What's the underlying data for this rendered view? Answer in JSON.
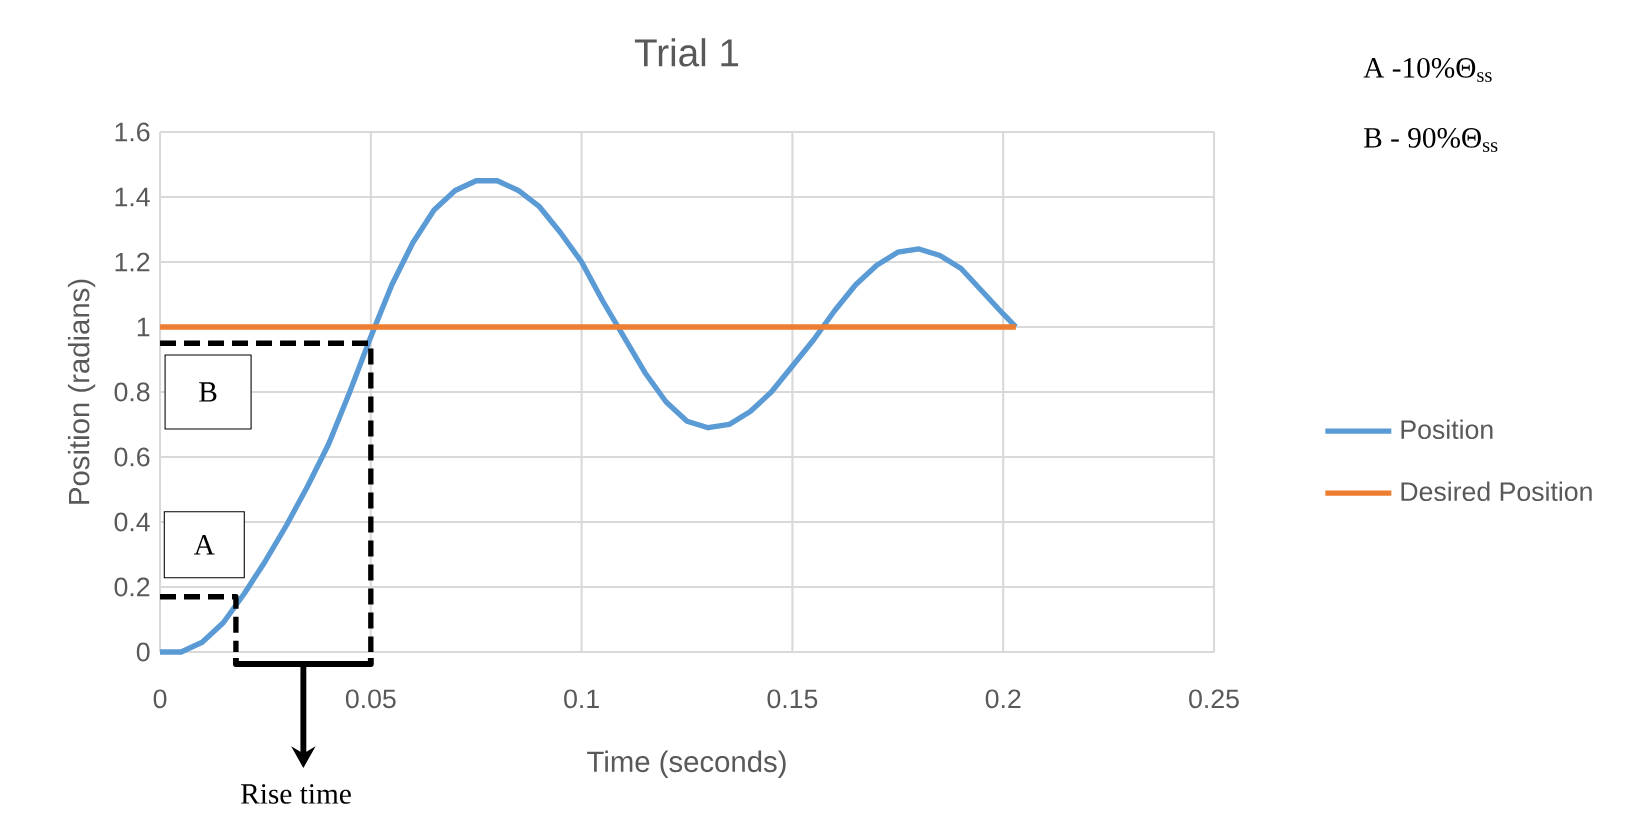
{
  "chart_data": {
    "type": "line",
    "title": "Trial 1",
    "xlabel": "Time (seconds)",
    "ylabel": "Position (radians)",
    "xlim": [
      0,
      0.25
    ],
    "xticks": [
      0,
      0.05,
      0.1,
      0.15,
      0.2,
      0.25
    ],
    "ylim": [
      0,
      1.6
    ],
    "yticks": [
      0,
      0.2,
      0.4,
      0.6,
      0.8,
      1,
      1.2,
      1.4,
      1.6
    ],
    "grid": true,
    "legend": "right",
    "marker": "none",
    "line_style": "solid",
    "annotations": [
      "A",
      "B",
      "A -10%Θ$_{ss}$",
      "B - 90%Θ$_{ss}$",
      "Rise time"
    ],
    "series": [
      {
        "name": "Position",
        "color": "#5b9bd5",
        "x": [
          0,
          0.005,
          0.01,
          0.015,
          0.02,
          0.025,
          0.03,
          0.035,
          0.04,
          0.045,
          0.05,
          0.055,
          0.06,
          0.065,
          0.07,
          0.075,
          0.08,
          0.085,
          0.09,
          0.095,
          0.1,
          0.105,
          0.11,
          0.115,
          0.12,
          0.125,
          0.13,
          0.135,
          0.14,
          0.145,
          0.15,
          0.155,
          0.16,
          0.165,
          0.17,
          0.175,
          0.18,
          0.185,
          0.19,
          0.195,
          0.2,
          0.203
        ],
        "values": [
          0,
          0,
          0.03,
          0.09,
          0.18,
          0.28,
          0.39,
          0.51,
          0.64,
          0.8,
          0.97,
          1.13,
          1.26,
          1.36,
          1.42,
          1.45,
          1.45,
          1.42,
          1.37,
          1.29,
          1.2,
          1.08,
          0.97,
          0.86,
          0.77,
          0.71,
          0.69,
          0.7,
          0.74,
          0.8,
          0.88,
          0.96,
          1.05,
          1.13,
          1.19,
          1.23,
          1.24,
          1.22,
          1.18,
          1.11,
          1.04,
          1.0
        ]
      },
      {
        "name": "Desired Position",
        "color": "#ed7d31",
        "x": [
          0,
          0.203
        ],
        "values": [
          1,
          1
        ]
      },
      {
        "color": "#000000",
        "line_style": "dashed",
        "x": [
          0,
          0.018,
          0.018
        ],
        "values": [
          0.17,
          0.17,
          0
        ]
      },
      {
        "color": "#000000",
        "line_style": "dashed",
        "x": [
          0,
          0.05,
          0.05
        ],
        "values": [
          0.95,
          0.95,
          0
        ]
      }
    ]
  }
}
